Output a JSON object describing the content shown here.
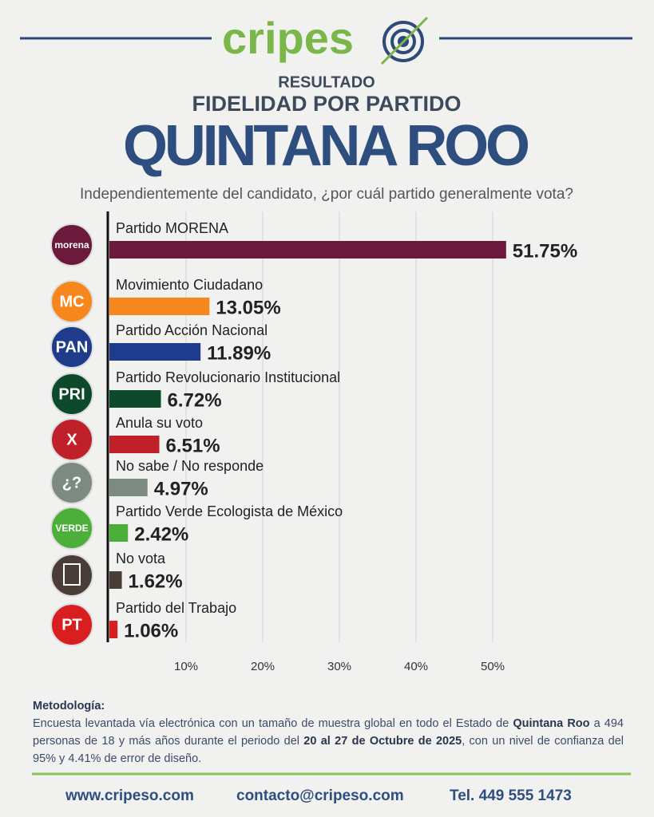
{
  "header": {
    "brand": "cripes",
    "kicker": "RESULTADO",
    "subtitle": "FIDELIDAD POR PARTIDO",
    "title": "QUINTANA ROO",
    "question": "Independientemente del candidato, ¿por cuál partido generalmente vota?"
  },
  "chart_data": {
    "type": "bar",
    "orientation": "horizontal",
    "categories": [
      "Partido MORENA",
      "Movimiento Ciudadano",
      "Partido Acción Nacional",
      "Partido Revolucionario Institucional",
      "Anula su voto",
      "No sabe / No responde",
      "Partido Verde Ecologista de México",
      "No vota",
      "Partido del Trabajo"
    ],
    "values": [
      51.75,
      13.05,
      11.89,
      6.72,
      6.51,
      4.97,
      2.42,
      1.62,
      1.06
    ],
    "value_labels": [
      "51.75%",
      "13.05%",
      "11.89%",
      "6.72%",
      "6.51%",
      "4.97%",
      "2.42%",
      "1.62%",
      "1.06%"
    ],
    "colors": [
      "#6b1a3c",
      "#f7861c",
      "#1f3c8c",
      "#0d4a2b",
      "#c0202a",
      "#7d8a80",
      "#4caf3a",
      "#4a3c36",
      "#d81e1e"
    ],
    "logos": [
      "morena",
      "MC",
      "PAN",
      "PRI",
      "X",
      "¿?",
      "VERDE",
      null,
      "PT"
    ],
    "xlim": [
      0,
      55
    ],
    "xticks": [
      {
        "value": 10,
        "label": "10%"
      },
      {
        "value": 20,
        "label": "20%"
      },
      {
        "value": 30,
        "label": "30%"
      },
      {
        "value": 40,
        "label": "40%"
      },
      {
        "value": 50,
        "label": "50%"
      }
    ],
    "grid": true
  },
  "methodology": {
    "title": "Metodología:",
    "parts": [
      {
        "text": "Encuesta levantada vía electrónica con un tamaño de muestra global en todo el Estado de ",
        "bold": false
      },
      {
        "text": "Quintana Roo",
        "bold": true
      },
      {
        "text": " a 494 personas de 18 y más años durante el periodo del ",
        "bold": false
      },
      {
        "text": "20 al 27 de Octubre de 2025",
        "bold": true
      },
      {
        "text": ", con un nivel de confianza del 95% y 4.41% de error de diseño.",
        "bold": false
      }
    ]
  },
  "footer": {
    "web": "www.cripeso.com",
    "email": "contacto@cripeso.com",
    "phone": "Tel. 449 555 1473"
  }
}
